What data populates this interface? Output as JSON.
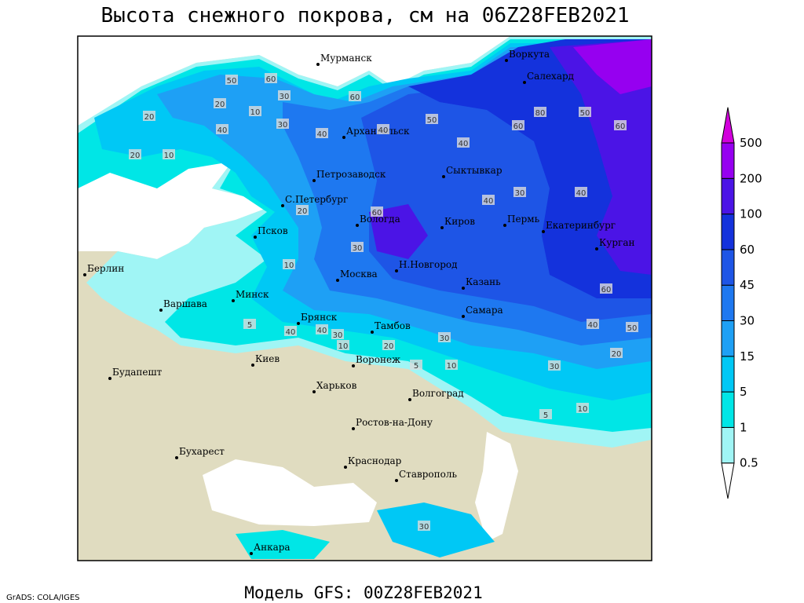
{
  "title": "Высота снежного покрова, см на 06Z28FEB2021",
  "subtitle": "Модель GFS: 00Z28FEB2021",
  "credit": "GrADS: COLA/IGES",
  "cities": [
    "Мурманск",
    "Воркута",
    "Салехард",
    "Архангельск",
    "Петрозаводск",
    "Сыктывкар",
    "С.Петербург",
    "Вологда",
    "Киров",
    "Пермь",
    "Екатеринбург",
    "Псков",
    "Курган",
    "Н.Новгород",
    "Москва",
    "Казань",
    "Берлин",
    "Минск",
    "Варшава",
    "Самара",
    "Брянск",
    "Тамбов",
    "Киев",
    "Воронеж",
    "Будапешт",
    "Харьков",
    "Волгоград",
    "Ростов-на-Дону",
    "Бухарест",
    "Краснодар",
    "Ставрополь",
    "Анкара"
  ],
  "contour_labels": [
    50,
    60,
    20,
    30,
    20,
    40,
    10,
    30,
    20,
    10,
    60,
    40,
    50,
    40,
    40,
    60,
    80,
    50,
    60,
    40,
    30,
    40,
    20,
    60,
    30,
    10,
    30,
    40,
    40,
    5,
    5,
    10,
    10,
    30,
    20,
    30,
    5,
    10,
    20,
    40,
    50,
    60,
    30
  ],
  "legend": {
    "levels": [
      0.5,
      1,
      5,
      15,
      30,
      45,
      60,
      100,
      200,
      500
    ],
    "colors": [
      "#ffffff",
      "#a0f5f5",
      "#00e6e6",
      "#00c8f5",
      "#1ea0f5",
      "#1e78f0",
      "#1e55e6",
      "#1432dc",
      "#4b14e6",
      "#9600f0",
      "#d200dc"
    ]
  }
}
